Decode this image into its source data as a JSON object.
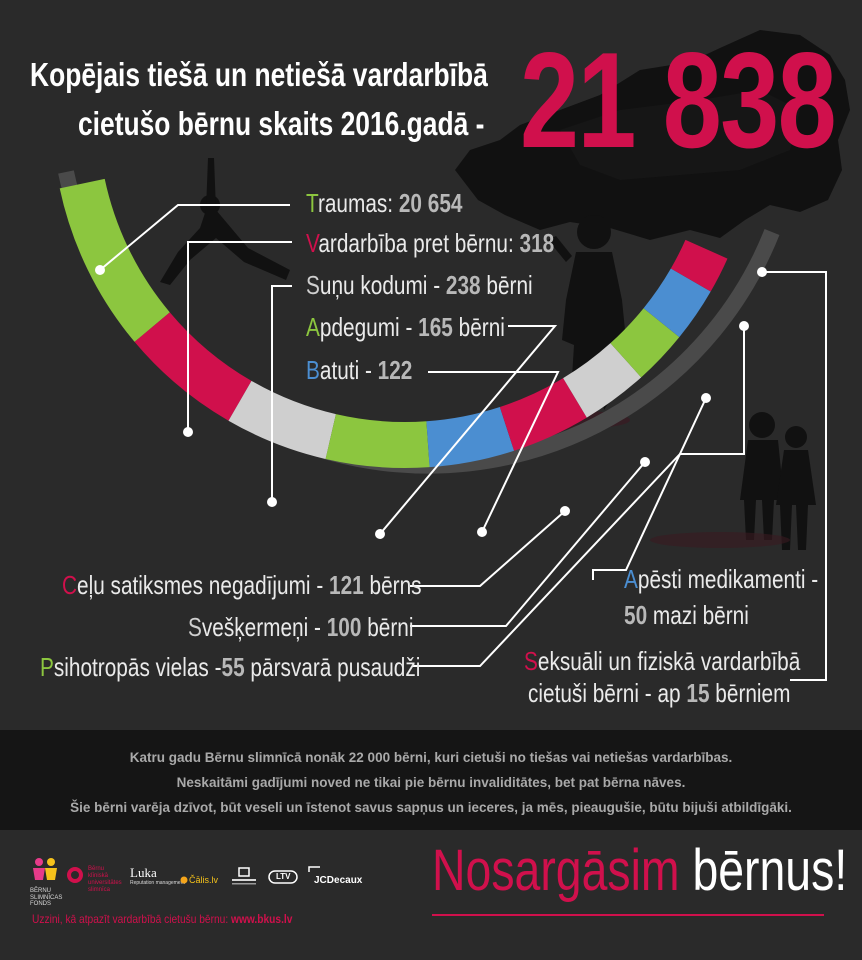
{
  "header": {
    "title_line1": "Kopējais tiešā un netiešā vardarbībā",
    "title_line2": "cietušo bērnu skaits 2016.gadā  -",
    "total": "21 838"
  },
  "colors": {
    "accent_red": "#d0104c",
    "green": "#8cc63f",
    "blue": "#4b8ed1",
    "grey": "#cfcfcf",
    "background": "#2a2a2a"
  },
  "categories": [
    {
      "initial": "T",
      "rest": "raumas:",
      "value": "20 654",
      "suffix": "",
      "color": "green"
    },
    {
      "initial": "V",
      "rest": "ardarbība pret bērnu:",
      "value": "318",
      "suffix": "",
      "color": "red"
    },
    {
      "initial": "S",
      "rest": "uņu kodumi - ",
      "value": "238",
      "suffix": " bērni",
      "color": "grey"
    },
    {
      "initial": "A",
      "rest": "pdegumi - ",
      "value": "165",
      "suffix": " bērni",
      "color": "green"
    },
    {
      "initial": "B",
      "rest": "atuti - ",
      "value": "122",
      "suffix": "",
      "color": "blue"
    },
    {
      "initial": "C",
      "rest": "eļu satiksmes negadījumi - ",
      "value": "121",
      "suffix": " bērns",
      "color": "red"
    },
    {
      "initial": "S",
      "rest": "vešķermeņi - ",
      "value": "100",
      "suffix": " bērni",
      "color": "grey"
    },
    {
      "initial": "P",
      "rest": "sihotropās vielas -",
      "value": "55",
      "suffix": " pārsvarā pusaudži",
      "color": "green"
    },
    {
      "initial": "A",
      "rest": "pēsti medikamenti -",
      "value": "50",
      "suffix": " mazi bērni",
      "color": "blue"
    },
    {
      "initial": "S",
      "rest": "eksuāli un fiziskā vardarbībā",
      "line2_pre": "cietuši bērni - ap ",
      "value": "15",
      "suffix": " bērniem",
      "color": "red"
    }
  ],
  "band": {
    "line1": "Katru gadu Bērnu slimnīcā nonāk  22 000 bērni, kuri cietuši no tiešas vai netiešas vardarbības.",
    "line2": "Neskaitāmi gadījumi noved ne tikai pie bērnu invaliditātes, bet pat bērna nāves.",
    "line3": "Šie bērni varēja dzīvot, būt veseli un īstenot savus sapņus un ieceres, ja mēs, pieaugušie, būtu bijuši atbildīgāki."
  },
  "footer": {
    "slogan_part1": "Nosargāsim",
    "slogan_part2": " bērnus!",
    "footnote_text": "Uzzini, kā atpazīt vardarbībā cietušu bērnu: ",
    "footnote_url": "www.bkus.lv",
    "logos": {
      "bsf": "BĒRNU SLIMNĪCAS FONDS",
      "bkus": "Bērnu klīniskā universitātes slimnīca",
      "luka": "Luka",
      "luka_sub": "Reputation management",
      "calis": "Čālis.lv",
      "ltv": "LTV",
      "jcdecaux": "JCDecaux"
    }
  }
}
